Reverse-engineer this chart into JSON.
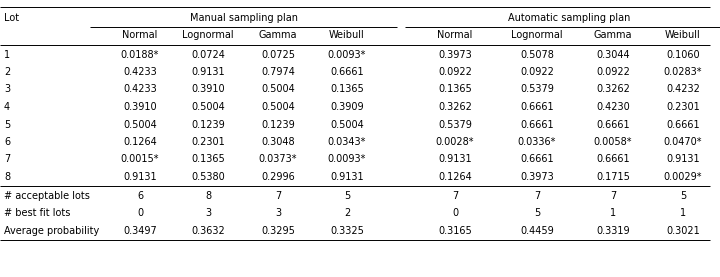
{
  "rows": [
    [
      "1",
      "0.0188*",
      "0.0724",
      "0.0725",
      "0.0093*",
      "0.3973",
      "0.5078",
      "0.3044",
      "0.1060"
    ],
    [
      "2",
      "0.4233",
      "0.9131",
      "0.7974",
      "0.6661",
      "0.0922",
      "0.0922",
      "0.0922",
      "0.0283*"
    ],
    [
      "3",
      "0.4233",
      "0.3910",
      "0.5004",
      "0.1365",
      "0.1365",
      "0.5379",
      "0.3262",
      "0.4232"
    ],
    [
      "4",
      "0.3910",
      "0.5004",
      "0.5004",
      "0.3909",
      "0.3262",
      "0.6661",
      "0.4230",
      "0.2301"
    ],
    [
      "5",
      "0.5004",
      "0.1239",
      "0.1239",
      "0.5004",
      "0.5379",
      "0.6661",
      "0.6661",
      "0.6661"
    ],
    [
      "6",
      "0.1264",
      "0.2301",
      "0.3048",
      "0.0343*",
      "0.0028*",
      "0.0336*",
      "0.0058*",
      "0.0470*"
    ],
    [
      "7",
      "0.0015*",
      "0.1365",
      "0.0373*",
      "0.0093*",
      "0.9131",
      "0.6661",
      "0.6661",
      "0.9131"
    ],
    [
      "8",
      "0.9131",
      "0.5380",
      "0.2996",
      "0.9131",
      "0.1264",
      "0.3973",
      "0.1715",
      "0.0029*"
    ]
  ],
  "footer_rows": [
    [
      "# acceptable lots",
      "6",
      "8",
      "7",
      "5",
      "7",
      "7",
      "7",
      "5"
    ],
    [
      "# best fit lots",
      "0",
      "3",
      "3",
      "2",
      "0",
      "5",
      "1",
      "1"
    ],
    [
      "Average probability",
      "0.3497",
      "0.3632",
      "0.3295",
      "0.3325",
      "0.3165",
      "0.4459",
      "0.3319",
      "0.3021"
    ]
  ],
  "subheaders": [
    "Normal",
    "Lognormal",
    "Gamma",
    "Weibull",
    "Normal",
    "Lognormal",
    "Gamma",
    "Weibull"
  ],
  "group1_label": "Manual sampling plan",
  "group2_label": "Automatic sampling plan",
  "lot_label": "Lot",
  "bg_color": "#ffffff",
  "text_color": "#000000",
  "font_size": 7.0,
  "fig_width": 7.2,
  "fig_height": 2.77,
  "dpi": 100
}
